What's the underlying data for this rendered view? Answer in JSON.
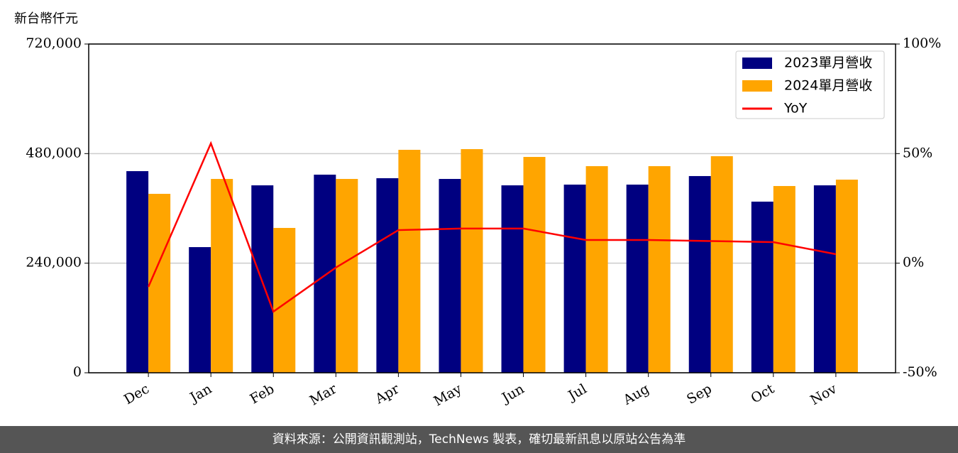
{
  "chart_data": {
    "type": "bar_line",
    "ylabel": "新台幣仟元",
    "categories": [
      "Dec",
      "Jan",
      "Feb",
      "Mar",
      "Apr",
      "May",
      "Jun",
      "Jul",
      "Aug",
      "Sep",
      "Oct",
      "Nov"
    ],
    "series": [
      {
        "name": "2023單月營收",
        "type": "bar",
        "color": "#000080",
        "values": [
          441600,
          275200,
          410500,
          433900,
          426100,
          424500,
          410500,
          412100,
          412100,
          430800,
          374800,
          410500
        ]
      },
      {
        "name": "2024單月營收",
        "type": "bar",
        "color": "#ffa500",
        "values": [
          391900,
          424500,
          317200,
          424500,
          488300,
          489800,
          472700,
          452500,
          452500,
          474300,
          409000,
          423000
        ]
      },
      {
        "name": "YoY",
        "type": "line",
        "axis": "y2",
        "color": "#ff0000",
        "values": [
          -10.8,
          54.7,
          -22.1,
          -2,
          15.1,
          15.8,
          15.8,
          10.6,
          10.6,
          10.1,
          9.6,
          4.1
        ]
      }
    ],
    "ylim": [
      0,
      720000
    ],
    "yticks": [
      0,
      {
        "value": 240000,
        "label": "240,000"
      },
      {
        "value": 480000,
        "label": "480,000"
      },
      {
        "value": 720000,
        "label": "720,000"
      }
    ],
    "y2lim": [
      -50,
      100
    ],
    "y2ticks": [
      {
        "value": -50,
        "label": "-50%"
      },
      {
        "value": 0,
        "label": "0%"
      },
      {
        "value": 50,
        "label": "50%"
      },
      {
        "value": 100,
        "label": "100%"
      }
    ],
    "grid": true,
    "legend": "upper right"
  },
  "footer": "資料來源：公開資訊觀測站，TechNews 製表，確切最新訊息以原站公告為準"
}
